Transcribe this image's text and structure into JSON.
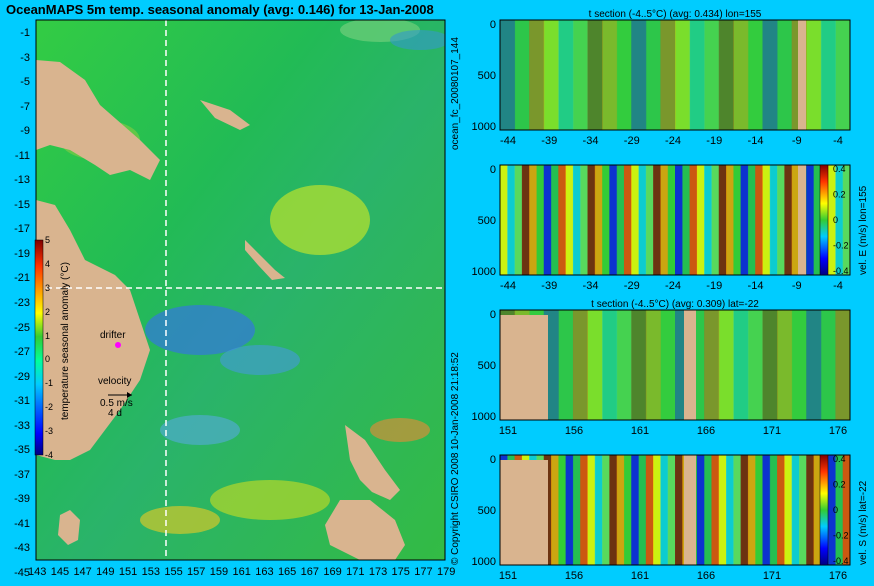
{
  "page": {
    "title": "OceanMAPS 5m temp. seasonal anomaly (avg: 0.146) for 13-Jan-2008",
    "run_label": "ocean_fc_20080107_144",
    "timestamp_label": "10-Jan-2008 21:18:52",
    "copyright": "© Copyright CSIRO 2008"
  },
  "colors": {
    "background": "#00ccff",
    "land": "#d9b48f",
    "ocean_mid": "#22bb44",
    "anomaly_scale": [
      "#000080",
      "#0000ff",
      "#0066ff",
      "#00ccff",
      "#00ff99",
      "#33cc33",
      "#ffff00",
      "#ff9900",
      "#ff3300",
      "#cc0000",
      "#800000"
    ]
  },
  "map": {
    "lat_ticks": [
      "-1",
      "-3",
      "-5",
      "-7",
      "-9",
      "-11",
      "-13",
      "-15",
      "-17",
      "-19",
      "-21",
      "-23",
      "-25",
      "-27",
      "-29",
      "-31",
      "-33",
      "-35",
      "-37",
      "-39",
      "-41",
      "-43",
      "-45"
    ],
    "lon_ticks": [
      "143",
      "145",
      "147",
      "149",
      "151",
      "153",
      "155",
      "157",
      "159",
      "161",
      "163",
      "165",
      "167",
      "169",
      "171",
      "173",
      "175",
      "177",
      "179"
    ],
    "drifter_label": "drifter",
    "velocity_label": "velocity",
    "velocity_scale": "0.5 m/s",
    "velocity_days": "4 d",
    "section_lon": 155,
    "section_lat": -22,
    "colorbar": {
      "label": "temperature seasonal anomaly (°C)",
      "ticks": [
        "5",
        "4",
        "3",
        "2",
        "1",
        "0",
        "-1",
        "-2",
        "-3",
        "-4"
      ]
    }
  },
  "chart_data": [
    {
      "type": "heatmap",
      "title": "t section (-4..5°C) (avg: 0.434) lon=155",
      "x_ticks": [
        "-44",
        "-39",
        "-34",
        "-29",
        "-24",
        "-19",
        "-14",
        "-9",
        "-4"
      ],
      "y_ticks": [
        "0",
        "500",
        "1000"
      ],
      "y_reverse": true
    },
    {
      "type": "heatmap",
      "title": "",
      "x_ticks": [
        "-44",
        "-39",
        "-34",
        "-29",
        "-24",
        "-19",
        "-14",
        "-9",
        "-4"
      ],
      "y_ticks": [
        "0",
        "500",
        "1000"
      ],
      "colorbar_label": "vel. E (m/s) lon=155",
      "colorbar_ticks": [
        "0.4",
        "0.2",
        "0",
        "-0.2",
        "-0.4"
      ]
    },
    {
      "type": "heatmap",
      "title": "t section (-4..5°C) (avg: 0.309) lat=-22",
      "x_ticks": [
        "151",
        "156",
        "161",
        "166",
        "171",
        "176"
      ],
      "y_ticks": [
        "0",
        "500",
        "1000"
      ]
    },
    {
      "type": "heatmap",
      "title": "",
      "x_ticks": [
        "151",
        "156",
        "161",
        "166",
        "171",
        "176"
      ],
      "y_ticks": [
        "0",
        "500",
        "1000"
      ],
      "colorbar_label": "vel. S (m/s) lat=-22",
      "colorbar_ticks": [
        "0.4",
        "0.2",
        "0",
        "-0.2",
        "-0.4"
      ]
    }
  ]
}
